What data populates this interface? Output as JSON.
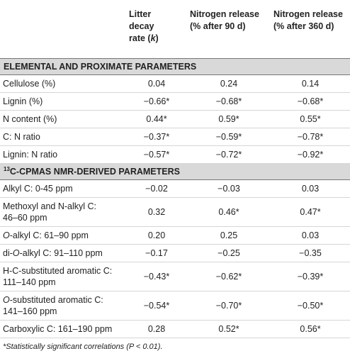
{
  "headers": [
    "",
    "Litter decay rate (k)",
    "Nitrogen release (% after 90 d)",
    "Nitrogen release (% after 360 d)"
  ],
  "header_parts": {
    "col1_a": "Litter",
    "col1_b": "decay",
    "col1_c": "rate (",
    "col1_k": "k",
    "col1_d": ")",
    "col2_a": "Nitrogen release",
    "col2_b": "(% after 90 d)",
    "col3_a": "Nitrogen release",
    "col3_b": "(% after 360 d)"
  },
  "sections": [
    {
      "title": "ELEMENTAL AND PROXIMATE PARAMETERS",
      "rows": [
        {
          "label": "Cellulose (%)",
          "values": [
            "0.04",
            "0.24",
            "0.14"
          ]
        },
        {
          "label": "Lignin (%)",
          "values": [
            "−0.66*",
            "−0.68*",
            "−0.68*"
          ]
        },
        {
          "label": "N content (%)",
          "values": [
            "0.44*",
            "0.59*",
            "0.55*"
          ]
        },
        {
          "label": "C: N ratio",
          "values": [
            "−0.37*",
            "−0.59*",
            "−0.78*"
          ]
        },
        {
          "label": "Lignin: N ratio",
          "values": [
            "−0.57*",
            "−0.72*",
            "−0.92*"
          ]
        }
      ]
    },
    {
      "title_sup": "13",
      "title": "C-CPMAS NMR-DERIVED PARAMETERS",
      "rows": [
        {
          "label": "Alkyl C: 0-45 ppm",
          "values": [
            "−0.02",
            "−0.03",
            "0.03"
          ]
        },
        {
          "label_a": "Methoxyl and N-alkyl C:",
          "label_b": "46–60 ppm",
          "values": [
            "0.32",
            "0.46*",
            "0.47*"
          ]
        },
        {
          "label_i": "O",
          "label": "-alkyl C: 61–90 ppm",
          "values": [
            "0.20",
            "0.25",
            "0.03"
          ]
        },
        {
          "label_pre": "di-",
          "label_i": "O",
          "label": "-alkyl C: 91–110 ppm",
          "values": [
            "−0.17",
            "−0.25",
            "−0.35"
          ]
        },
        {
          "label_a": "H-C-substituted aromatic C:",
          "label_b": "111–140 ppm",
          "values": [
            "−0.43*",
            "−0.62*",
            "−0.39*"
          ]
        },
        {
          "label_i": "O",
          "label_a": "-substituted aromatic C:",
          "label_b": "141–160 ppm",
          "values": [
            "−0.54*",
            "−0.70*",
            "−0.50*"
          ]
        },
        {
          "label": "Carboxylic C: 161–190 ppm",
          "values": [
            "0.28",
            "0.52*",
            "0.56*"
          ]
        }
      ]
    }
  ],
  "footnote": "*Statistically significant correlations (P < 0.01)."
}
